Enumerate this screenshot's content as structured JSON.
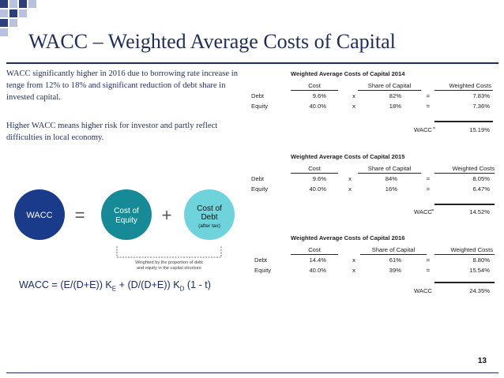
{
  "slide": {
    "title": "WACC – Weighted Average Costs of Capital",
    "page_number": "13",
    "paragraph1": "WACC significantly higher in 2016 due to borrowing rate increase in tenge from 12% to 18% and significant reduction of debt share in invested capital.",
    "paragraph2": "Higher WACC means higher risk for investor and partly reflect difficulties in local economy."
  },
  "diagram": {
    "wacc_label": "WACC",
    "equals": "=",
    "plus": "+",
    "cost_of_equity_line1": "Cost of",
    "cost_of_equity_line2": "Equity",
    "cost_of_debt_line1": "Cost of",
    "cost_of_debt_line2": "Debt",
    "cost_of_debt_note": "(after tax)",
    "bracket_note_line1": "Weighted by the proportion of debt",
    "bracket_note_line2": "and equity in the capital structure",
    "colors": {
      "dark_blue": "#1a3a8a",
      "teal": "#178a98",
      "light_teal": "#6fd3dc"
    }
  },
  "formula": {
    "part1": "WACC = (E/(D+E)) K",
    "sub1": "E",
    "part2": " + (D/(D+E)) K",
    "sub2": "D",
    "part3": " (1 - t)"
  },
  "tables": [
    {
      "title": "Weighted Average Costs of Capital 2014",
      "headers": {
        "cost": "Cost",
        "share": "Share of Capital",
        "weighted": "Weighted Costs"
      },
      "rows": [
        {
          "label": "Debt",
          "cost": "9.6%",
          "x": "x",
          "share": "82%",
          "eq": "=",
          "weighted": "7.83%"
        },
        {
          "label": "Equity",
          "cost": "40.0%",
          "x": "x",
          "share": "18%",
          "eq": "=",
          "weighted": "7.36%"
        }
      ],
      "total_label": "WACC",
      "total_eq": "=",
      "total": "15.19%"
    },
    {
      "title": "Weighted Average Costs of Capital 2015",
      "headers": {
        "cost": "Cost",
        "share": "Share of Capital",
        "weighted": "Weighted Costs"
      },
      "rows": [
        {
          "label": "Debt",
          "cost": "9.6%",
          "x": "x",
          "share": "84%",
          "eq": "=",
          "weighted": "8.05%"
        },
        {
          "label": "Equity",
          "cost": "40.0%",
          "x": "x",
          "share": "16%",
          "eq": "=",
          "weighted": "6.47%"
        }
      ],
      "total_label": "WACC",
      "total_eq": "=",
      "total": "14.52%"
    },
    {
      "title": "Weighted Average Costs of Capital 2016",
      "headers": {
        "cost": "Cost",
        "share": "Share of Capital",
        "weighted": "Weighted Costs"
      },
      "rows": [
        {
          "label": "Debt",
          "cost": "14.4%",
          "x": "x",
          "share": "61%",
          "eq": "=",
          "weighted": "8.80%"
        },
        {
          "label": "Equity",
          "cost": "40.0%",
          "x": "x",
          "share": "39%",
          "eq": "=",
          "weighted": "15.54%"
        }
      ],
      "total_label": "WACC",
      "total_eq": "",
      "total": "24.35%"
    }
  ]
}
